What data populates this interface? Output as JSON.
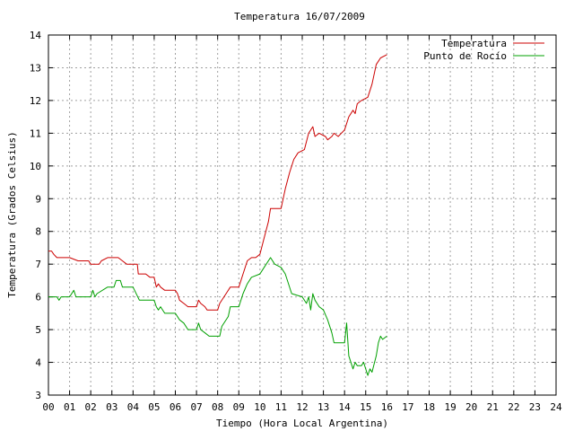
{
  "chart_data": {
    "type": "line",
    "title": "Temperatura 16/07/2009",
    "xlabel": "Tiempo (Hora Local Argentina)",
    "ylabel": "Temperatura (Grados Celsius)",
    "xlim": [
      0,
      24
    ],
    "ylim": [
      3,
      14
    ],
    "x_ticks": [
      0,
      1,
      2,
      3,
      4,
      5,
      6,
      7,
      8,
      9,
      10,
      11,
      12,
      13,
      14,
      15,
      16,
      17,
      18,
      19,
      20,
      21,
      22,
      23,
      24
    ],
    "x_tick_labels": [
      "00",
      "01",
      "02",
      "03",
      "04",
      "05",
      "06",
      "07",
      "08",
      "09",
      "10",
      "11",
      "12",
      "13",
      "14",
      "15",
      "16",
      "17",
      "18",
      "19",
      "20",
      "21",
      "22",
      "23",
      "24"
    ],
    "y_ticks": [
      3,
      4,
      5,
      6,
      7,
      8,
      9,
      10,
      11,
      12,
      13,
      14
    ],
    "y_tick_labels": [
      "3",
      "4",
      "5",
      "6",
      "7",
      "8",
      "9",
      "10",
      "11",
      "12",
      "13",
      "14"
    ],
    "grid": true,
    "legend_position": "top-right",
    "series": [
      {
        "name": "Temperatura",
        "color": "#cc0000",
        "points": [
          [
            0.0,
            7.4
          ],
          [
            0.15,
            7.4
          ],
          [
            0.25,
            7.3
          ],
          [
            0.4,
            7.2
          ],
          [
            1.0,
            7.2
          ],
          [
            1.4,
            7.1
          ],
          [
            1.9,
            7.1
          ],
          [
            2.0,
            7.0
          ],
          [
            2.4,
            7.0
          ],
          [
            2.5,
            7.1
          ],
          [
            2.8,
            7.2
          ],
          [
            3.3,
            7.2
          ],
          [
            3.5,
            7.1
          ],
          [
            3.7,
            7.0
          ],
          [
            4.2,
            7.0
          ],
          [
            4.25,
            6.7
          ],
          [
            4.6,
            6.7
          ],
          [
            4.8,
            6.6
          ],
          [
            5.0,
            6.6
          ],
          [
            5.1,
            6.3
          ],
          [
            5.2,
            6.4
          ],
          [
            5.3,
            6.3
          ],
          [
            5.5,
            6.2
          ],
          [
            6.0,
            6.2
          ],
          [
            6.1,
            6.1
          ],
          [
            6.2,
            5.9
          ],
          [
            6.4,
            5.8
          ],
          [
            6.6,
            5.7
          ],
          [
            7.0,
            5.7
          ],
          [
            7.1,
            5.9
          ],
          [
            7.2,
            5.8
          ],
          [
            7.4,
            5.7
          ],
          [
            7.5,
            5.6
          ],
          [
            8.0,
            5.6
          ],
          [
            8.1,
            5.8
          ],
          [
            8.4,
            6.1
          ],
          [
            8.6,
            6.3
          ],
          [
            9.0,
            6.3
          ],
          [
            9.2,
            6.7
          ],
          [
            9.4,
            7.1
          ],
          [
            9.6,
            7.2
          ],
          [
            9.8,
            7.2
          ],
          [
            10.0,
            7.3
          ],
          [
            10.2,
            7.8
          ],
          [
            10.4,
            8.3
          ],
          [
            10.5,
            8.7
          ],
          [
            11.0,
            8.7
          ],
          [
            11.2,
            9.3
          ],
          [
            11.4,
            9.8
          ],
          [
            11.6,
            10.2
          ],
          [
            11.8,
            10.4
          ],
          [
            12.1,
            10.5
          ],
          [
            12.3,
            11.0
          ],
          [
            12.5,
            11.2
          ],
          [
            12.6,
            10.9
          ],
          [
            12.8,
            11.0
          ],
          [
            13.1,
            10.9
          ],
          [
            13.2,
            10.8
          ],
          [
            13.4,
            10.9
          ],
          [
            13.5,
            11.0
          ],
          [
            13.7,
            10.9
          ],
          [
            14.0,
            11.1
          ],
          [
            14.2,
            11.5
          ],
          [
            14.4,
            11.7
          ],
          [
            14.5,
            11.6
          ],
          [
            14.6,
            11.9
          ],
          [
            14.8,
            12.0
          ],
          [
            15.1,
            12.1
          ],
          [
            15.3,
            12.5
          ],
          [
            15.5,
            13.1
          ],
          [
            15.6,
            13.2
          ],
          [
            15.7,
            13.3
          ],
          [
            16.0,
            13.4
          ]
        ]
      },
      {
        "name": "Punto de Rocío",
        "color": "#00a000",
        "points": [
          [
            0.0,
            6.0
          ],
          [
            0.4,
            6.0
          ],
          [
            0.5,
            5.9
          ],
          [
            0.6,
            6.0
          ],
          [
            1.0,
            6.0
          ],
          [
            1.2,
            6.2
          ],
          [
            1.3,
            6.0
          ],
          [
            2.0,
            6.0
          ],
          [
            2.1,
            6.2
          ],
          [
            2.2,
            6.0
          ],
          [
            2.3,
            6.1
          ],
          [
            2.8,
            6.3
          ],
          [
            3.1,
            6.3
          ],
          [
            3.2,
            6.5
          ],
          [
            3.4,
            6.5
          ],
          [
            3.5,
            6.3
          ],
          [
            4.0,
            6.3
          ],
          [
            4.3,
            5.9
          ],
          [
            5.0,
            5.9
          ],
          [
            5.1,
            5.7
          ],
          [
            5.2,
            5.6
          ],
          [
            5.3,
            5.7
          ],
          [
            5.5,
            5.5
          ],
          [
            6.0,
            5.5
          ],
          [
            6.2,
            5.3
          ],
          [
            6.4,
            5.2
          ],
          [
            6.6,
            5.0
          ],
          [
            7.0,
            5.0
          ],
          [
            7.1,
            5.2
          ],
          [
            7.2,
            5.0
          ],
          [
            7.4,
            4.9
          ],
          [
            7.6,
            4.8
          ],
          [
            8.1,
            4.8
          ],
          [
            8.2,
            5.1
          ],
          [
            8.5,
            5.4
          ],
          [
            8.6,
            5.7
          ],
          [
            9.0,
            5.7
          ],
          [
            9.2,
            6.1
          ],
          [
            9.4,
            6.4
          ],
          [
            9.6,
            6.6
          ],
          [
            10.0,
            6.7
          ],
          [
            10.2,
            6.9
          ],
          [
            10.5,
            7.2
          ],
          [
            10.7,
            7.0
          ],
          [
            11.0,
            6.9
          ],
          [
            11.2,
            6.7
          ],
          [
            11.5,
            6.1
          ],
          [
            12.0,
            6.0
          ],
          [
            12.2,
            5.8
          ],
          [
            12.3,
            6.0
          ],
          [
            12.4,
            5.6
          ],
          [
            12.5,
            6.1
          ],
          [
            12.6,
            5.9
          ],
          [
            12.8,
            5.7
          ],
          [
            13.0,
            5.6
          ],
          [
            13.2,
            5.3
          ],
          [
            13.4,
            4.9
          ],
          [
            13.5,
            4.6
          ],
          [
            13.8,
            4.6
          ],
          [
            14.0,
            4.6
          ],
          [
            14.1,
            5.2
          ],
          [
            14.2,
            4.2
          ],
          [
            14.4,
            3.8
          ],
          [
            14.5,
            4.0
          ],
          [
            14.6,
            3.9
          ],
          [
            14.8,
            3.9
          ],
          [
            14.9,
            4.0
          ],
          [
            15.1,
            3.6
          ],
          [
            15.2,
            3.8
          ],
          [
            15.3,
            3.7
          ],
          [
            15.5,
            4.2
          ],
          [
            15.6,
            4.6
          ],
          [
            15.7,
            4.8
          ],
          [
            15.8,
            4.7
          ],
          [
            16.0,
            4.8
          ]
        ]
      }
    ]
  }
}
